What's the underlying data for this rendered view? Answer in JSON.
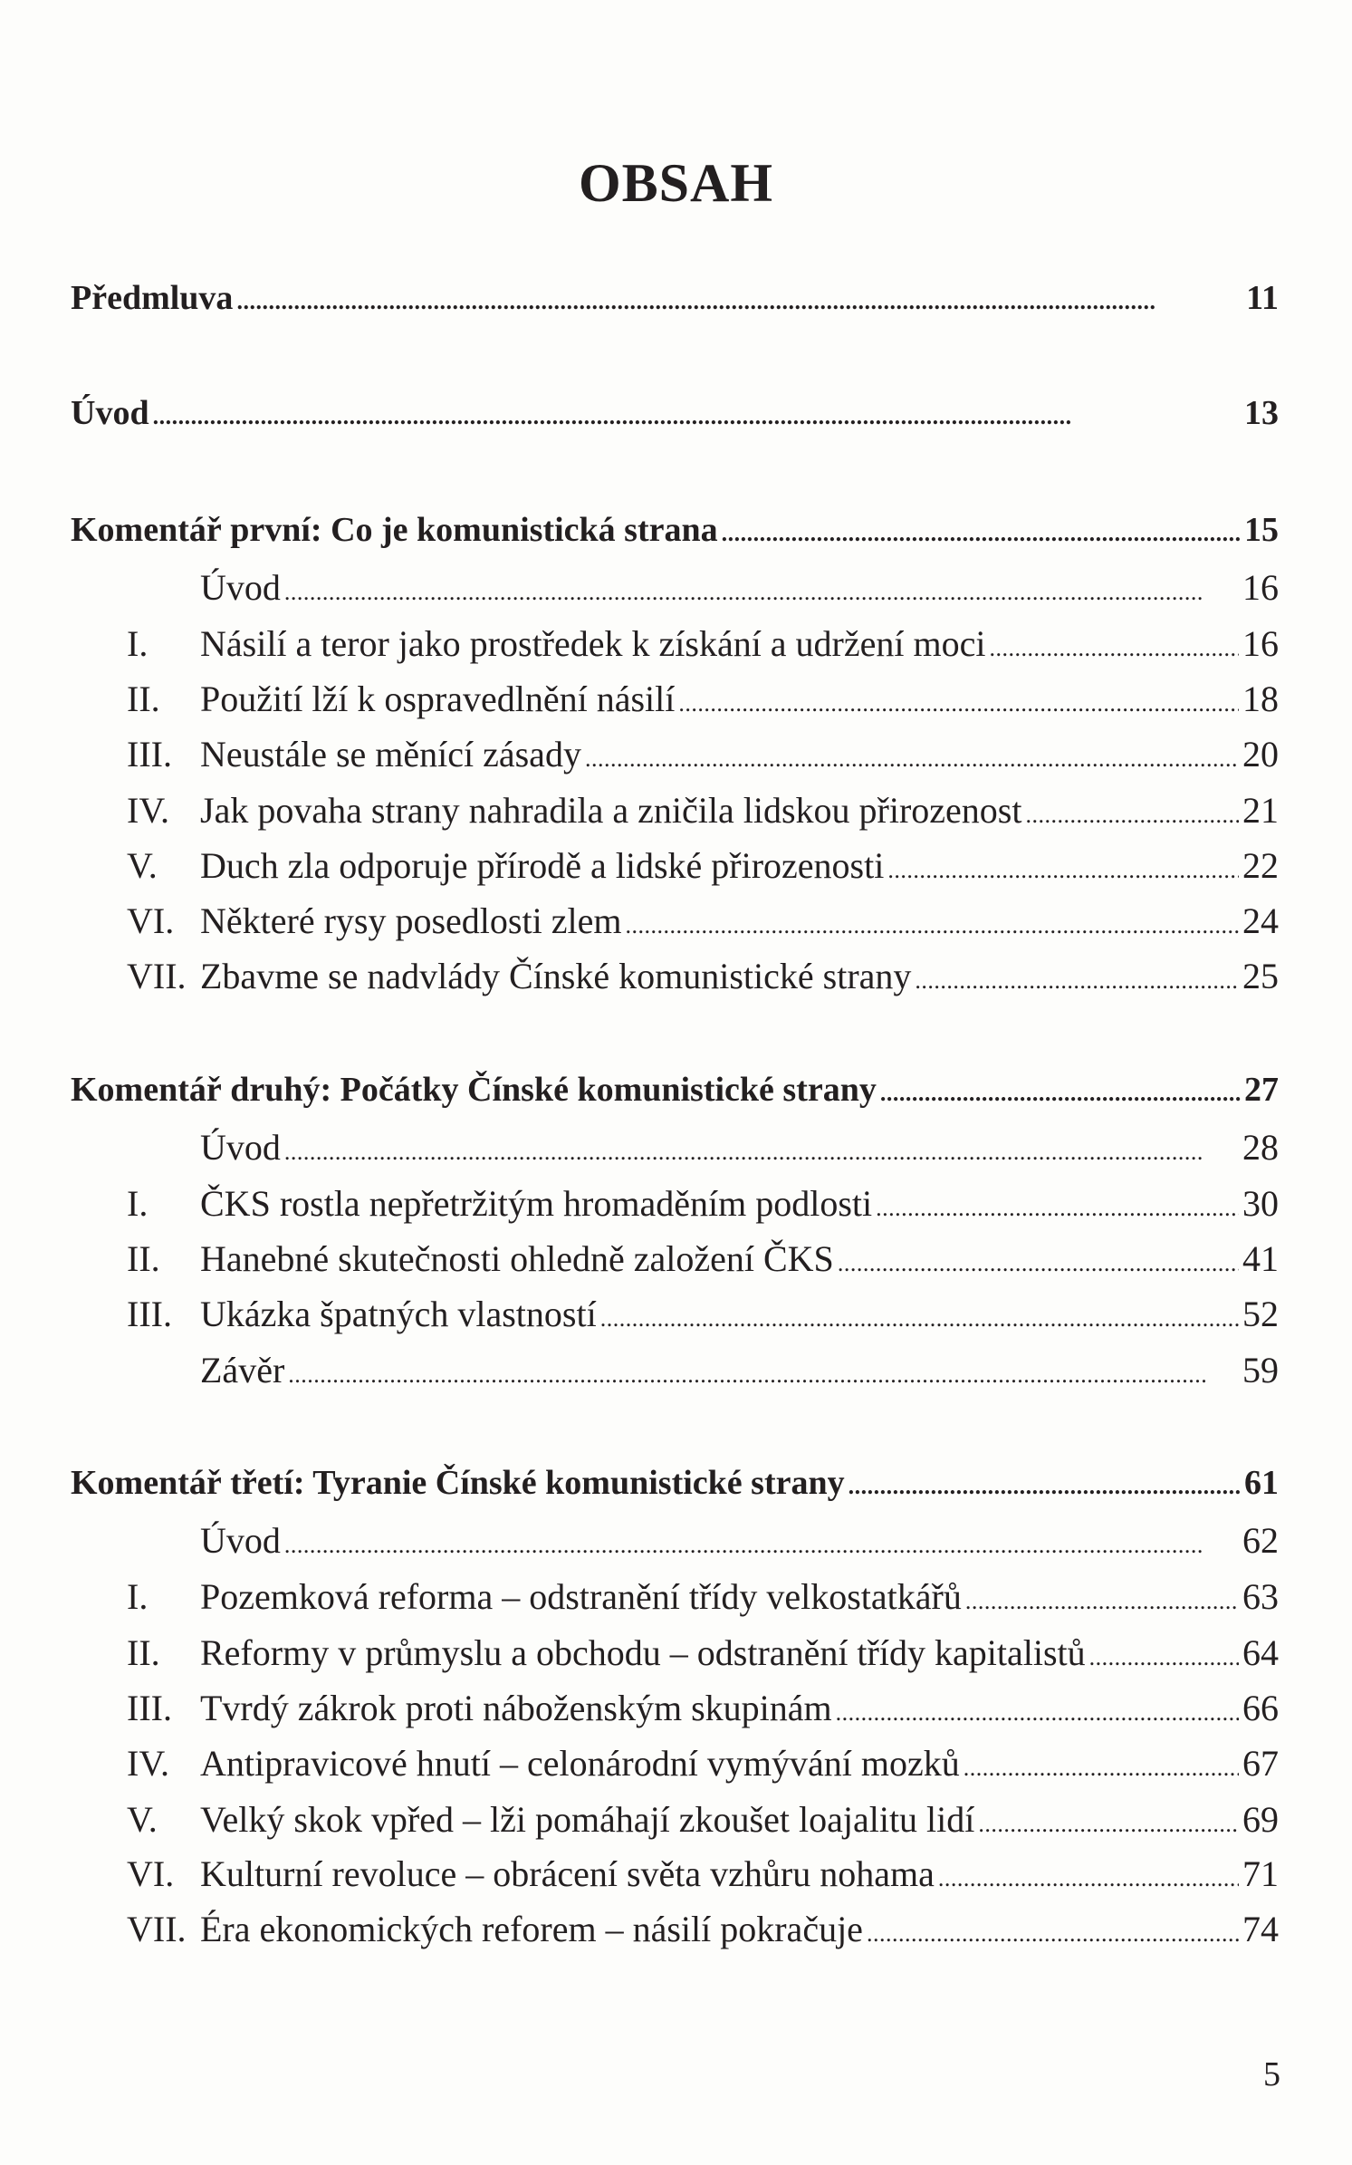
{
  "title": "OBSAH",
  "entries": [
    {
      "level": "head",
      "label": "Předmluva",
      "page": "11"
    },
    {
      "level": "head",
      "label": "Úvod",
      "page": "13"
    },
    {
      "level": "head",
      "label": "Komentář první: Co je komunistická strana",
      "page": "15"
    },
    {
      "level": "sub",
      "num": "",
      "label": "Úvod",
      "page": "16"
    },
    {
      "level": "sub",
      "num": "I.",
      "label": "Násilí a teror jako prostředek k získání a udržení moci",
      "page": "16"
    },
    {
      "level": "sub",
      "num": "II.",
      "label": "Použití lží k ospravedlnění násilí",
      "page": "18"
    },
    {
      "level": "sub",
      "num": "III.",
      "label": "Neustále se měnící zásady",
      "page": "20"
    },
    {
      "level": "sub",
      "num": "IV.",
      "label": "Jak povaha strany nahradila a zničila lidskou přirozenost",
      "page": "21"
    },
    {
      "level": "sub",
      "num": "V.",
      "label": "Duch zla odporuje přírodě a lidské přirozenosti",
      "page": "22"
    },
    {
      "level": "sub",
      "num": "VI.",
      "label": "Některé rysy posedlosti zlem",
      "page": "24"
    },
    {
      "level": "sub",
      "num": "VII.",
      "label": "Zbavme se nadvlády Čínské komunistické strany",
      "page": "25"
    },
    {
      "level": "head",
      "label": "Komentář druhý: Počátky Čínské komunistické strany",
      "page": "27"
    },
    {
      "level": "sub",
      "num": "",
      "label": "Úvod",
      "page": "28"
    },
    {
      "level": "sub",
      "num": "I.",
      "label": "ČKS rostla nepřetržitým hromaděním podlosti",
      "page": "30"
    },
    {
      "level": "sub",
      "num": "II.",
      "label": "Hanebné skutečnosti ohledně založení ČKS",
      "page": "41"
    },
    {
      "level": "sub",
      "num": "III.",
      "label": "Ukázka špatných vlastností",
      "page": "52"
    },
    {
      "level": "sub",
      "num": "",
      "label": "Závěr",
      "page": "59"
    },
    {
      "level": "head",
      "label": "Komentář třetí: Tyranie Čínské komunistické strany",
      "page": "61"
    },
    {
      "level": "sub",
      "num": "",
      "label": "Úvod",
      "page": "62"
    },
    {
      "level": "sub",
      "num": "I.",
      "label": "Pozemková reforma – odstranění třídy velkostatkářů",
      "page": "63"
    },
    {
      "level": "sub",
      "num": "II.",
      "label": "Reformy v průmyslu a obchodu – odstranění třídy kapitalistů",
      "page": "64"
    },
    {
      "level": "sub",
      "num": "III.",
      "label": "Tvrdý zákrok proti náboženským skupinám",
      "page": "66"
    },
    {
      "level": "sub",
      "num": "IV.",
      "label": "Antipravicové hnutí – celonárodní vymývání mozků",
      "page": "67"
    },
    {
      "level": "sub",
      "num": "V.",
      "label": "Velký skok vpřed – lži pomáhají zkoušet loajalitu lidí",
      "page": "69"
    },
    {
      "level": "sub",
      "num": "VI.",
      "label": "Kulturní revoluce – obrácení světa vzhůru nohama",
      "page": "71"
    },
    {
      "level": "sub",
      "num": "VII.",
      "label": "Éra ekonomických reforem – násilí pokračuje",
      "page": "74"
    }
  ],
  "page_number": "5"
}
